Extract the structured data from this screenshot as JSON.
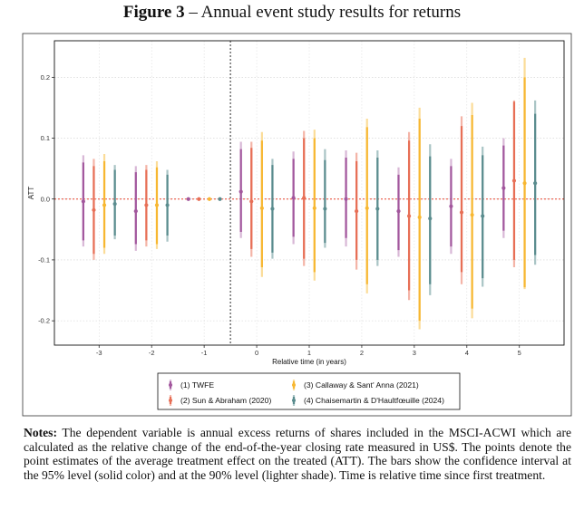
{
  "figure": {
    "label": "Figure 3",
    "separator": "–",
    "title": "Annual event study results for returns"
  },
  "notes": {
    "label": "Notes:",
    "text": "The dependent variable is annual excess returns of shares included in the MSCI-ACWI which are calculated as the relative change of the end-of-the-year closing rate measured in US$. The points denote the point estimates of the average treatment effect on the treated (ATT). The bars show the confidence interval at the 95% level (solid color) and at the 90% level (lighter shade). Time is relative time since first treatment."
  },
  "chart_data": {
    "type": "scatter",
    "subtype": "event-study point estimates with confidence intervals",
    "xlabel": "Relative time (in years)",
    "ylabel": "ATT",
    "xlim": [
      -3.85,
      5.85
    ],
    "ylim": [
      -0.24,
      0.26
    ],
    "x_ticks": [
      -3,
      -2,
      -1,
      0,
      1,
      2,
      3,
      4,
      5
    ],
    "x_tick_labels": [
      "-3",
      "-2",
      "-1",
      "0",
      "1",
      "2",
      "3",
      "4",
      "5"
    ],
    "y_ticks": [
      -0.2,
      -0.1,
      0.0,
      0.1,
      0.2
    ],
    "y_tick_labels": [
      "-0.2",
      "-0.1",
      "0.0",
      "0.1",
      "0.2"
    ],
    "reference_line_y": 0,
    "treatment_line_x": -0.5,
    "grid": true,
    "legend_position": "bottom",
    "series": [
      {
        "name": "(1) TWFE",
        "color": "#a2579d",
        "light_color": "#d8b7d6",
        "offset": -0.3,
        "points": [
          {
            "t": -3,
            "est": -0.004,
            "ci95": [
              -0.068,
              0.06
            ],
            "ci90": [
              -0.078,
              0.072
            ]
          },
          {
            "t": -2,
            "est": -0.02,
            "ci95": [
              -0.074,
              0.044
            ],
            "ci90": [
              -0.085,
              0.054
            ]
          },
          {
            "t": -1,
            "est": 0.0,
            "ci95": [
              0.0,
              0.0
            ],
            "ci90": [
              0.0,
              0.0
            ]
          },
          {
            "t": 0,
            "est": 0.012,
            "ci95": [
              -0.054,
              0.082
            ],
            "ci90": [
              -0.064,
              0.094
            ]
          },
          {
            "t": 1,
            "est": 0.002,
            "ci95": [
              -0.062,
              0.066
            ],
            "ci90": [
              -0.074,
              0.078
            ]
          },
          {
            "t": 2,
            "est": 0.0,
            "ci95": [
              -0.064,
              0.068
            ],
            "ci90": [
              -0.078,
              0.08
            ]
          },
          {
            "t": 3,
            "est": -0.02,
            "ci95": [
              -0.084,
              0.04
            ],
            "ci90": [
              -0.095,
              0.052
            ]
          },
          {
            "t": 4,
            "est": -0.012,
            "ci95": [
              -0.078,
              0.054
            ],
            "ci90": [
              -0.09,
              0.066
            ]
          },
          {
            "t": 5,
            "est": 0.018,
            "ci95": [
              -0.052,
              0.088
            ],
            "ci90": [
              -0.064,
              0.1
            ]
          }
        ]
      },
      {
        "name": "(2) Sun & Abraham (2020)",
        "color": "#e76f56",
        "light_color": "#f4b4a7",
        "offset": -0.1,
        "points": [
          {
            "t": -3,
            "est": -0.018,
            "ci95": [
              -0.09,
              0.054
            ],
            "ci90": [
              -0.1,
              0.066
            ]
          },
          {
            "t": -2,
            "est": -0.01,
            "ci95": [
              -0.068,
              0.048
            ],
            "ci90": [
              -0.078,
              0.056
            ]
          },
          {
            "t": -1,
            "est": 0.0,
            "ci95": [
              0.0,
              0.0
            ],
            "ci90": [
              0.0,
              0.0
            ]
          },
          {
            "t": 0,
            "est": -0.004,
            "ci95": [
              -0.082,
              0.084
            ],
            "ci90": [
              -0.095,
              0.094
            ]
          },
          {
            "t": 1,
            "est": 0.002,
            "ci95": [
              -0.098,
              0.1
            ],
            "ci90": [
              -0.11,
              0.112
            ]
          },
          {
            "t": 2,
            "est": -0.02,
            "ci95": [
              -0.1,
              0.062
            ],
            "ci90": [
              -0.116,
              0.076
            ]
          },
          {
            "t": 3,
            "est": -0.028,
            "ci95": [
              -0.15,
              0.096
            ],
            "ci90": [
              -0.166,
              0.11
            ]
          },
          {
            "t": 4,
            "est": -0.022,
            "ci95": [
              -0.12,
              0.12
            ],
            "ci90": [
              -0.14,
              0.136
            ]
          },
          {
            "t": 5,
            "est": 0.03,
            "ci95": [
              -0.1,
              0.16
            ],
            "ci90": [
              -0.112,
              0.162
            ]
          }
        ]
      },
      {
        "name": "(3) Callaway & Sant' Anna (2021)",
        "color": "#f7b731",
        "light_color": "#fbdc98",
        "offset": 0.1,
        "points": [
          {
            "t": -3,
            "est": -0.01,
            "ci95": [
              -0.08,
              0.062
            ],
            "ci90": [
              -0.09,
              0.074
            ]
          },
          {
            "t": -2,
            "est": -0.01,
            "ci95": [
              -0.074,
              0.052
            ],
            "ci90": [
              -0.082,
              0.062
            ]
          },
          {
            "t": -1,
            "est": 0.0,
            "ci95": [
              0.0,
              0.0
            ],
            "ci90": [
              0.0,
              0.0
            ]
          },
          {
            "t": 0,
            "est": -0.015,
            "ci95": [
              -0.112,
              0.096
            ],
            "ci90": [
              -0.128,
              0.11
            ]
          },
          {
            "t": 1,
            "est": -0.015,
            "ci95": [
              -0.12,
              0.1
            ],
            "ci90": [
              -0.134,
              0.114
            ]
          },
          {
            "t": 2,
            "est": -0.015,
            "ci95": [
              -0.14,
              0.118
            ],
            "ci90": [
              -0.155,
              0.132
            ]
          },
          {
            "t": 3,
            "est": -0.03,
            "ci95": [
              -0.2,
              0.132
            ],
            "ci90": [
              -0.214,
              0.15
            ]
          },
          {
            "t": 4,
            "est": -0.026,
            "ci95": [
              -0.18,
              0.138
            ],
            "ci90": [
              -0.196,
              0.158
            ]
          },
          {
            "t": 5,
            "est": 0.026,
            "ci95": [
              -0.145,
              0.2
            ],
            "ci90": [
              -0.148,
              0.232
            ]
          }
        ]
      },
      {
        "name": "(4) Chaisemartin & D'Haultfœuille (2024)",
        "color": "#5a8c8e",
        "light_color": "#a9c4c5",
        "offset": 0.3,
        "points": [
          {
            "t": -3,
            "est": -0.008,
            "ci95": [
              -0.06,
              0.048
            ],
            "ci90": [
              -0.066,
              0.056
            ]
          },
          {
            "t": -2,
            "est": -0.01,
            "ci95": [
              -0.06,
              0.04
            ],
            "ci90": [
              -0.07,
              0.048
            ]
          },
          {
            "t": -1,
            "est": 0.0,
            "ci95": [
              0.0,
              0.0
            ],
            "ci90": [
              0.0,
              0.0
            ]
          },
          {
            "t": 0,
            "est": -0.016,
            "ci95": [
              -0.088,
              0.056
            ],
            "ci90": [
              -0.098,
              0.066
            ]
          },
          {
            "t": 1,
            "est": -0.016,
            "ci95": [
              -0.072,
              0.064
            ],
            "ci90": [
              -0.08,
              0.082
            ]
          },
          {
            "t": 2,
            "est": -0.016,
            "ci95": [
              -0.1,
              0.068
            ],
            "ci90": [
              -0.11,
              0.08
            ]
          },
          {
            "t": 3,
            "est": -0.032,
            "ci95": [
              -0.14,
              0.07
            ],
            "ci90": [
              -0.158,
              0.09
            ]
          },
          {
            "t": 4,
            "est": -0.028,
            "ci95": [
              -0.13,
              0.072
            ],
            "ci90": [
              -0.144,
              0.086
            ]
          },
          {
            "t": 5,
            "est": 0.026,
            "ci95": [
              -0.092,
              0.14
            ],
            "ci90": [
              -0.108,
              0.162
            ]
          }
        ]
      }
    ]
  }
}
